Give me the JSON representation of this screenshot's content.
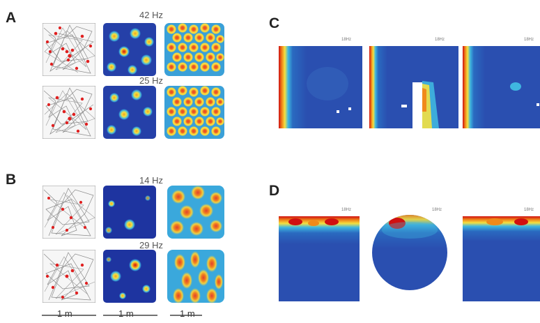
{
  "panels": {
    "A": {
      "label": "A",
      "rate_top": "42 Hz",
      "rate_bottom": "25 Hz"
    },
    "B": {
      "label": "B",
      "rate_top": "14 Hz",
      "rate_bottom": "29 Hz"
    },
    "C": {
      "label": "C",
      "tiny_rates": [
        "18Hz",
        "18Hz",
        "18Hz"
      ]
    },
    "D": {
      "label": "D",
      "tiny_rates": [
        "18Hz",
        "18Hz",
        "18Hz"
      ]
    }
  },
  "scale_bars": [
    "1 m",
    "1 m",
    "1 m"
  ],
  "colors": {
    "background_blue": "#2a47a8",
    "deep_blue": "#1c2f8f",
    "trajectory_gray": "#888888",
    "spike_red": "#e02020",
    "hot_red": "#d01010",
    "hot_orange": "#f08a1a",
    "hot_yellow": "#f4e040",
    "mid_cyan": "#3fb6e0"
  }
}
